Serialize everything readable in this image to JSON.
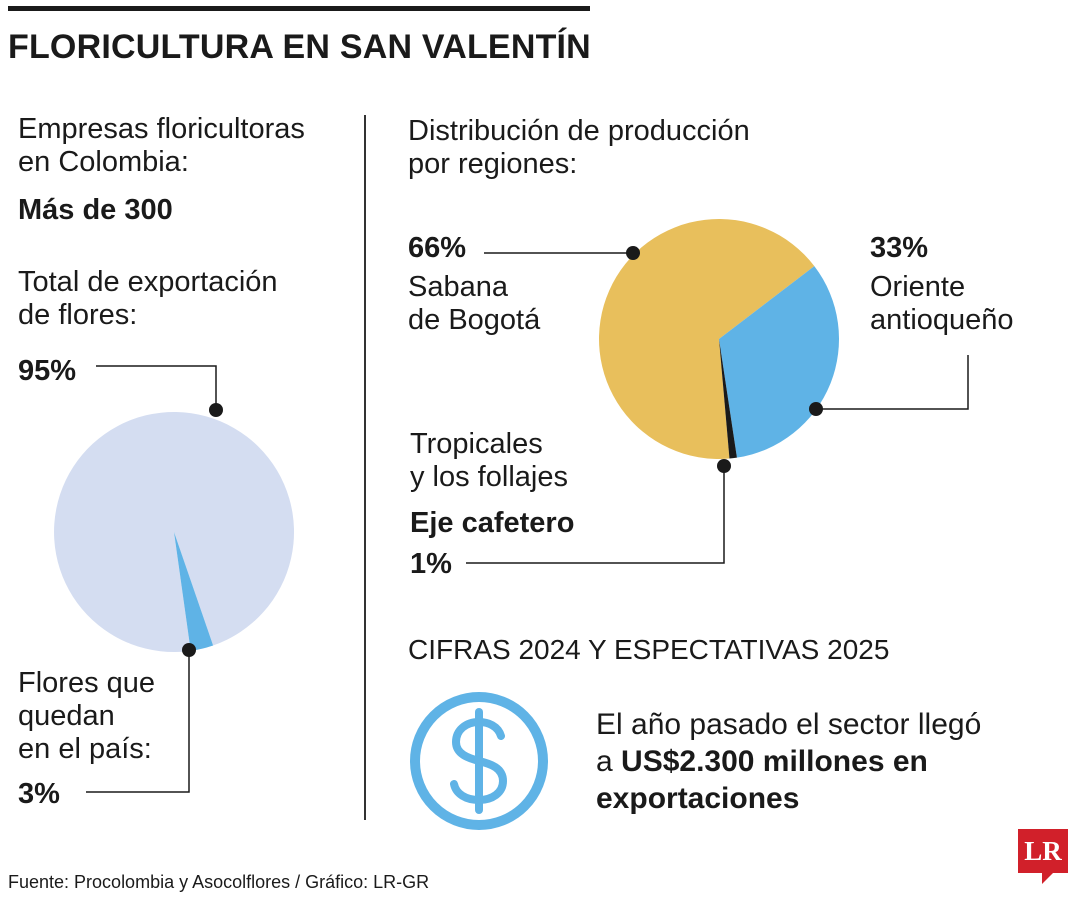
{
  "header": {
    "title": "FLORICULTURA EN SAN VALENTÍN"
  },
  "left": {
    "companies_label_line1": "Empresas floricultoras",
    "companies_label_line2": "en Colombia:",
    "companies_value": "Más de 300",
    "export_label_line1": "Total de exportación",
    "export_label_line2": "de flores:",
    "export_value": "95%",
    "domestic_label_line1": "Flores que",
    "domestic_label_line2": "quedan",
    "domestic_label_line3": "en el país:",
    "domestic_value": "3%"
  },
  "right": {
    "distribution_label_line1": "Distribución de producción",
    "distribution_label_line2": "por regiones:",
    "sabana_value": "66%",
    "sabana_label_line1": "Sabana",
    "sabana_label_line2": "de Bogotá",
    "oriente_value": "33%",
    "oriente_label_line1": "Oriente",
    "oriente_label_line2": "antioqueño",
    "eje_label_line1": "Tropicales",
    "eje_label_line2": "y los follajes",
    "eje_label_line3": "Eje cafetero",
    "eje_value": "1%"
  },
  "cifras": {
    "title": "CIFRAS 2024 Y ESPECTATIVAS 2025",
    "text_line1": "El año pasado el sector llegó",
    "text_line2_prefix": "a ",
    "text_line2_bold": "US$2.300 millones en",
    "text_line3_bold": "exportaciones"
  },
  "footer": {
    "source": "Fuente: Procolombia y Asocolflores / Gráfico: LR-GR",
    "logo_text": "LR"
  },
  "colors": {
    "light_blue": "#d4ddf1",
    "blue": "#5fb3e6",
    "yellow": "#e8bf5c",
    "black": "#1a1a1a",
    "logo_red": "#d1202a"
  },
  "icons": {
    "money": "dollar-coin-icon",
    "logo": "lr-logo-icon"
  },
  "chart_data": [
    {
      "type": "pie",
      "labels": [
        "Total de exportación de flores",
        "Flores que quedan en el país"
      ],
      "values": [
        95,
        3
      ],
      "colors": [
        "#d4ddf1",
        "#5fb3e6"
      ]
    },
    {
      "type": "pie",
      "labels": [
        "Sabana de Bogotá",
        "Oriente antioqueño",
        "Eje cafetero"
      ],
      "values": [
        66,
        33,
        1
      ],
      "colors": [
        "#e8bf5c",
        "#5fb3e6",
        "#1a1a1a"
      ]
    }
  ]
}
